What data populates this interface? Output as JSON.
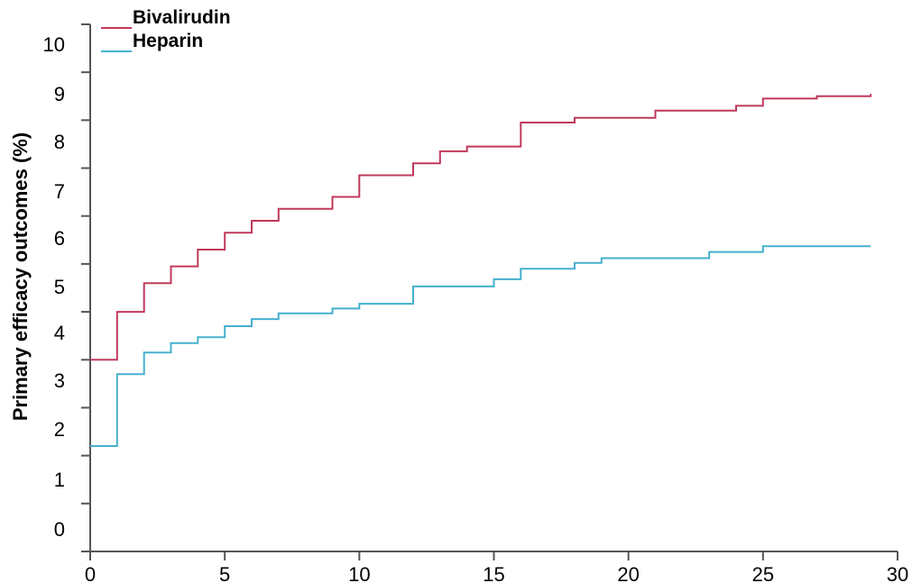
{
  "chart_data": {
    "type": "line",
    "step": true,
    "title": "",
    "xlabel": "",
    "ylabel": "Primary efficacy outcomes (%)",
    "xlim": [
      0,
      30
    ],
    "ylim": [
      -0.5,
      10.5
    ],
    "x_ticks": [
      0,
      5,
      10,
      15,
      20,
      25,
      30
    ],
    "x_tick_labels": [
      "0",
      "5",
      "10",
      "15",
      "20",
      "25",
      "30"
    ],
    "y_tick_labels": [
      "0",
      "1",
      "2",
      "3",
      "4",
      "5",
      "6",
      "7",
      "8",
      "9",
      "10"
    ],
    "grid": false,
    "legend_position": "top-left",
    "series": [
      {
        "name": "Bivalirudin",
        "color": "#c0395a",
        "x": [
          0,
          1,
          2,
          3,
          4,
          5,
          6,
          7,
          9,
          10,
          12,
          13,
          14,
          16,
          18,
          21,
          24,
          25,
          27,
          29
        ],
        "y": [
          3.5,
          4.5,
          5.1,
          5.45,
          5.8,
          6.15,
          6.4,
          6.65,
          6.9,
          7.35,
          7.6,
          7.85,
          7.95,
          8.45,
          8.55,
          8.7,
          8.8,
          8.95,
          9.0,
          9.05
        ]
      },
      {
        "name": "Heparin",
        "color": "#45b0cf",
        "x": [
          0,
          1,
          2,
          3,
          4,
          5,
          6,
          7,
          9,
          10,
          12,
          15,
          16,
          18,
          19,
          23,
          25,
          29
        ],
        "y": [
          1.7,
          3.2,
          3.65,
          3.85,
          3.97,
          4.2,
          4.35,
          4.47,
          4.57,
          4.67,
          5.03,
          5.18,
          5.4,
          5.52,
          5.62,
          5.75,
          5.87,
          5.87
        ]
      }
    ]
  }
}
